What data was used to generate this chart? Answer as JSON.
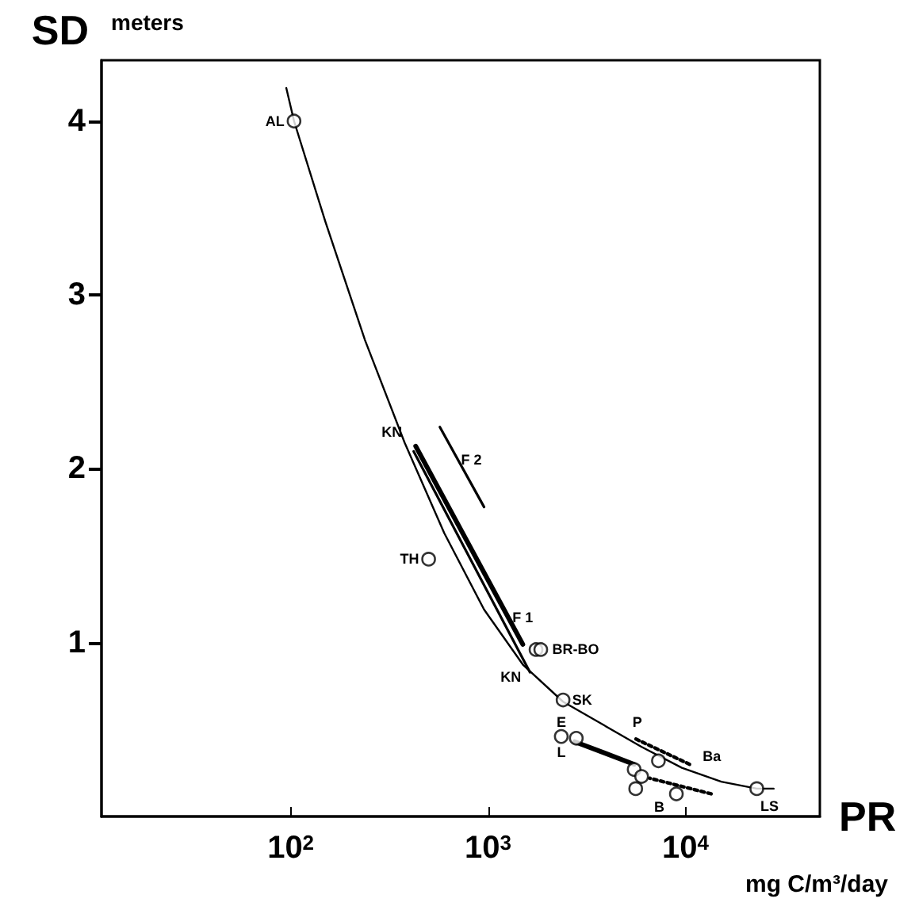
{
  "chart_data": {
    "type": "scatter",
    "xlabel": "PR",
    "ylabel": "SD",
    "log": "x",
    "grid": false,
    "marker": "circle",
    "xlim": [
      11,
      48000
    ],
    "xticks": [
      {
        "value": 100,
        "label": "10$^{2}$"
      },
      {
        "value": 1000,
        "label": "10$^{3}$"
      },
      {
        "value": 10000,
        "label": "10$^{4}$"
      }
    ],
    "ylim": [
      0,
      4.35
    ],
    "yticks": [
      1,
      2,
      3,
      4
    ],
    "series": [
      {
        "type": "scatter",
        "color": "#000000",
        "x": [
          104,
          500,
          1750,
          1850,
          2400,
          2350,
          2800,
          5500,
          7300,
          6000,
          5600,
          9000,
          23000
        ],
        "values": [
          4.0,
          1.48,
          0.96,
          0.96,
          0.67,
          0.46,
          0.45,
          0.27,
          0.32,
          0.23,
          0.16,
          0.13,
          0.16
        ]
      },
      {
        "type": "line",
        "marker": "none",
        "line_style": "solid",
        "color": "#000000",
        "x": [
          95,
          104,
          150,
          238,
          378,
          600,
          955,
          1510,
          2400,
          3800,
          6000,
          9600,
          15200,
          23000,
          28000
        ],
        "values": [
          4.19,
          4.0,
          3.42,
          2.74,
          2.15,
          1.63,
          1.19,
          0.87,
          0.66,
          0.53,
          0.4,
          0.28,
          0.2,
          0.16,
          0.16
        ]
      },
      {
        "type": "line",
        "marker": "none",
        "line_style": "solid",
        "color": "#000000",
        "x": [
          430,
          1500
        ],
        "values": [
          2.13,
          0.99
        ]
      },
      {
        "type": "line",
        "marker": "none",
        "line_style": "solid",
        "color": "#000000",
        "x": [
          420,
          1630
        ],
        "values": [
          2.1,
          0.83
        ]
      },
      {
        "type": "line",
        "marker": "none",
        "line_style": "solid",
        "color": "#000000",
        "x": [
          570,
          955
        ],
        "values": [
          2.24,
          1.78
        ]
      },
      {
        "type": "line",
        "marker": "none",
        "line_style": "dotted",
        "color": "#000000",
        "x": [
          10500,
          5500
        ],
        "values": [
          0.3,
          0.45
        ]
      },
      {
        "type": "line",
        "marker": "none",
        "line_style": "dotted",
        "color": "#000000",
        "x": [
          13500,
          6600
        ],
        "values": [
          0.13,
          0.22
        ]
      },
      {
        "type": "line",
        "marker": "none",
        "line_style": "solid",
        "color": "#000000",
        "x": [
          2750,
          5500
        ],
        "values": [
          0.43,
          0.3
        ]
      }
    ],
    "annotations": [
      "meters",
      "mg C/m³/day",
      {
        "text": "AL",
        "x": 104,
        "y": 4.0
      },
      {
        "text": "TH",
        "x": 500,
        "y": 1.48
      },
      {
        "text": "KN",
        "x": 430,
        "y": 2.13
      },
      {
        "text": "F 2",
        "x": 955,
        "y": 1.78
      },
      {
        "text": "F 1",
        "x": 1500,
        "y": 0.99
      },
      {
        "text": "BR-BO",
        "x": 1850,
        "y": 0.96
      },
      {
        "text": "KN",
        "x": 1630,
        "y": 0.83
      },
      {
        "text": "SK",
        "x": 2400,
        "y": 0.67
      },
      {
        "text": "E",
        "x": 2350,
        "y": 0.46
      },
      {
        "text": "L",
        "x": 2350,
        "y": 0.46
      },
      {
        "text": "P",
        "x": 5500,
        "y": 0.45
      },
      {
        "text": "Ba",
        "x": 10500,
        "y": 0.3
      },
      {
        "text": "B",
        "x": 6600,
        "y": 0.22
      },
      {
        "text": "LS",
        "x": 23000,
        "y": 0.16
      }
    ]
  }
}
